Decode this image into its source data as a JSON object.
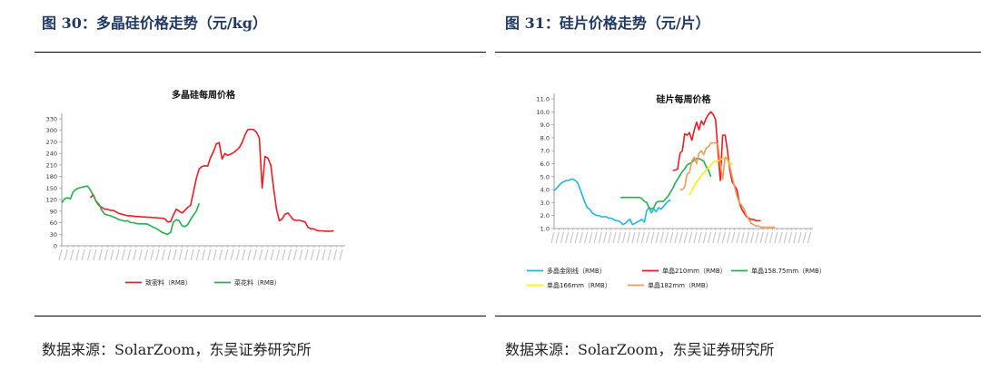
{
  "figures": [
    {
      "caption": "图 30：多晶硅价格走势（元/kg）",
      "source": "数据来源：SolarZoom，东吴证券研究所"
    },
    {
      "caption": "图 31：硅片价格走势（元/片）",
      "source": "数据来源：SolarZoom，东吴证券研究所"
    }
  ],
  "chart_data": [
    {
      "type": "line",
      "title": "多晶硅每周价格",
      "xlabel": "",
      "ylabel": "",
      "ylim": [
        0,
        330
      ],
      "yticks": [
        0,
        30,
        60,
        90,
        120,
        150,
        180,
        210,
        240,
        270,
        300,
        330
      ],
      "x_points": 100,
      "xtick_labels_legible": false,
      "grid": false,
      "legend": "bottom",
      "series": [
        {
          "name": "致密料（RMB）",
          "color": "#ee1c25",
          "start_index": 10,
          "values": [
            125,
            133,
            115,
            105,
            100,
            95,
            95,
            92,
            92,
            88,
            84,
            82,
            80,
            78,
            78,
            77,
            76,
            76,
            75,
            75,
            74,
            74,
            73,
            73,
            72,
            72,
            70,
            62,
            63,
            80,
            95,
            90,
            85,
            92,
            100,
            105,
            140,
            175,
            200,
            206,
            208,
            207,
            230,
            245,
            265,
            268,
            225,
            240,
            235,
            238,
            242,
            248,
            255,
            268,
            288,
            302,
            303,
            302,
            295,
            280,
            150,
            232,
            228,
            210,
            150,
            95,
            65,
            70,
            82,
            85,
            76,
            67,
            66,
            66,
            64,
            62,
            48,
            44,
            44,
            40,
            39,
            39,
            38,
            38,
            38,
            39
          ]
        },
        {
          "name": "菜花料（RMB）",
          "color": "#22b14c",
          "start_index": 0,
          "values": [
            112,
            122,
            125,
            122,
            140,
            147,
            150,
            152,
            154,
            155,
            145,
            130,
            116,
            108,
            92,
            82,
            80,
            78,
            75,
            72,
            68,
            66,
            64,
            65,
            60,
            60,
            58,
            57,
            57,
            57,
            56,
            52,
            48,
            45,
            40,
            35,
            32,
            30,
            35,
            62,
            68,
            65,
            52,
            50,
            55,
            68,
            80,
            90,
            110
          ]
        }
      ]
    },
    {
      "type": "line",
      "title": "硅片每周价格",
      "xlabel": "",
      "ylabel": "",
      "ylim": [
        1.0,
        11.0
      ],
      "yticks": [
        1.0,
        2.0,
        3.0,
        4.0,
        5.0,
        6.0,
        7.0,
        8.0,
        9.0,
        10.0,
        11.0
      ],
      "x_points": 110,
      "xtick_labels_legible": false,
      "grid": false,
      "legend": "bottom",
      "series": [
        {
          "name": "多晶金刚线（RMB）",
          "color": "#1eb8e0",
          "start_index": 0,
          "values": [
            3.9,
            4.1,
            4.3,
            4.5,
            4.6,
            4.7,
            4.7,
            4.8,
            4.8,
            4.7,
            4.5,
            4.0,
            3.5,
            3.0,
            2.6,
            2.5,
            2.2,
            2.1,
            2.0,
            2.0,
            1.9,
            1.9,
            1.9,
            1.8,
            1.8,
            1.7,
            1.6,
            1.6,
            1.5,
            1.3,
            1.4,
            1.6,
            1.7,
            1.3,
            1.4,
            1.5,
            1.6,
            1.7,
            1.5,
            2.4,
            2.6,
            2.2,
            2.5,
            2.3,
            2.6,
            2.5,
            2.7,
            2.9,
            3.1,
            3.2
          ]
        },
        {
          "name": "单晶210mm（RMB）",
          "color": "#ee1c25",
          "start_index": 50,
          "values": [
            5.5,
            5.5,
            5.6,
            6.8,
            7.0,
            8.3,
            8.2,
            8.4,
            7.8,
            8.6,
            9.2,
            8.6,
            9.3,
            9.0,
            9.5,
            9.8,
            10.0,
            9.8,
            9.4,
            7.0,
            4.7,
            8.2,
            8.2,
            7.0,
            5.5,
            4.6,
            4.3,
            4.0,
            3.0,
            2.5,
            2.2,
            1.9,
            1.8,
            1.7,
            1.7,
            1.6,
            1.6,
            1.6
          ]
        },
        {
          "name": "单晶158.75mm（RMB）",
          "color": "#22b14c",
          "start_index": 28,
          "values": [
            3.4,
            3.4,
            3.4,
            3.4,
            3.4,
            3.4,
            3.4,
            3.4,
            3.4,
            3.3,
            3.1,
            3.0,
            2.6,
            2.5,
            2.6,
            3.0,
            3.1,
            3.1,
            3.1,
            3.3,
            3.5,
            3.8,
            4.1,
            4.5,
            4.8,
            5.1,
            5.4,
            5.6,
            5.9,
            6.0,
            6.1,
            6.3,
            6.4,
            6.4,
            6.3,
            6.2,
            5.8,
            5.5,
            5.0
          ]
        },
        {
          "name": "单晶166mm（RMB）",
          "color": "#ffee11",
          "start_index": 57,
          "values": [
            3.6,
            3.9,
            4.3,
            4.6,
            4.8,
            5.1,
            5.3,
            5.5,
            5.7,
            5.9,
            6.1,
            6.2,
            6.2,
            6.3,
            6.4,
            6.4,
            6.3,
            6.1,
            5.9
          ]
        },
        {
          "name": "单晶182mm（RMB）",
          "color": "#f59b58",
          "start_index": 53,
          "values": [
            4.0,
            4.0,
            4.2,
            5.2,
            5.3,
            6.2,
            6.5,
            6.0,
            6.8,
            7.0,
            6.7,
            7.2,
            7.3,
            7.6,
            7.6,
            7.6,
            7.5,
            6.0,
            4.8,
            6.5,
            6.4,
            5.8,
            5.0,
            4.2,
            3.5,
            3.0,
            2.8,
            2.5,
            2.0,
            1.7,
            1.4,
            1.3,
            1.2,
            1.2,
            1.1,
            1.1,
            1.1,
            1.1,
            1.1,
            1.1,
            1.1
          ]
        }
      ]
    }
  ]
}
